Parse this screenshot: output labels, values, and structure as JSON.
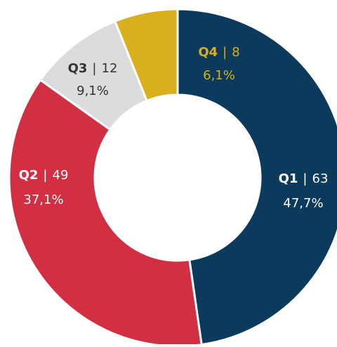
{
  "chart_data": {
    "type": "donut",
    "categories": [
      "Q1",
      "Q2",
      "Q3",
      "Q4"
    ],
    "values": [
      63,
      49,
      12,
      8
    ],
    "percent_labels": [
      "47,7%",
      "37,1%",
      "9,1%",
      "6,1%"
    ],
    "separator": "|",
    "colors": [
      "#0b3a5d",
      "#d22f42",
      "#dcdcdc",
      "#d8af1c"
    ],
    "label_colors": [
      "#ffffff",
      "#ffffff",
      "#333333",
      "#d8af1c"
    ]
  }
}
